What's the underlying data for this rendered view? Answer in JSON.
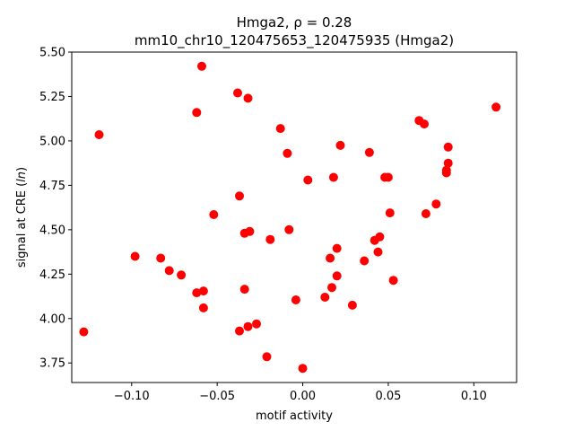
{
  "chart_data": {
    "type": "scatter",
    "title_line1_prefix": "Hmga2, ",
    "title_line1_rho": "ρ = 0.28",
    "title_line2": "mm10_chr10_120475653_120475935 (Hmga2)",
    "xlabel": "motif activity",
    "ylabel_prefix": "signal at CRE (",
    "ylabel_italic": "ln",
    "ylabel_suffix": ")",
    "xlim": [
      -0.135,
      0.125
    ],
    "ylim": [
      3.64,
      5.5
    ],
    "xticks": [
      -0.1,
      -0.05,
      0.0,
      0.05,
      0.1
    ],
    "xtick_labels": [
      "−0.10",
      "−0.05",
      "0.00",
      "0.05",
      "0.10"
    ],
    "yticks": [
      3.75,
      4.0,
      4.25,
      4.5,
      4.75,
      5.0,
      5.25,
      5.5
    ],
    "ytick_labels": [
      "3.75",
      "4.00",
      "4.25",
      "4.50",
      "4.75",
      "5.00",
      "5.25",
      "5.50"
    ],
    "marker_color": "#ff0000",
    "points": [
      {
        "x": -0.128,
        "y": 3.925
      },
      {
        "x": -0.119,
        "y": 5.035
      },
      {
        "x": -0.098,
        "y": 4.35
      },
      {
        "x": -0.083,
        "y": 4.34
      },
      {
        "x": -0.078,
        "y": 4.27
      },
      {
        "x": -0.071,
        "y": 4.245
      },
      {
        "x": -0.062,
        "y": 5.16
      },
      {
        "x": -0.062,
        "y": 4.145
      },
      {
        "x": -0.058,
        "y": 4.155
      },
      {
        "x": -0.058,
        "y": 4.06
      },
      {
        "x": -0.059,
        "y": 5.42
      },
      {
        "x": -0.052,
        "y": 4.585
      },
      {
        "x": -0.038,
        "y": 5.27
      },
      {
        "x": -0.037,
        "y": 4.69
      },
      {
        "x": -0.037,
        "y": 3.93
      },
      {
        "x": -0.034,
        "y": 4.48
      },
      {
        "x": -0.034,
        "y": 4.165
      },
      {
        "x": -0.032,
        "y": 5.24
      },
      {
        "x": -0.031,
        "y": 4.49
      },
      {
        "x": -0.032,
        "y": 3.955
      },
      {
        "x": -0.027,
        "y": 3.97
      },
      {
        "x": -0.021,
        "y": 3.785
      },
      {
        "x": -0.019,
        "y": 4.445
      },
      {
        "x": -0.013,
        "y": 5.07
      },
      {
        "x": -0.009,
        "y": 4.93
      },
      {
        "x": -0.008,
        "y": 4.5
      },
      {
        "x": -0.004,
        "y": 4.105
      },
      {
        "x": 0.0,
        "y": 3.72
      },
      {
        "x": 0.003,
        "y": 4.78
      },
      {
        "x": 0.013,
        "y": 4.12
      },
      {
        "x": 0.016,
        "y": 4.34
      },
      {
        "x": 0.017,
        "y": 4.175
      },
      {
        "x": 0.018,
        "y": 4.795
      },
      {
        "x": 0.02,
        "y": 4.395
      },
      {
        "x": 0.02,
        "y": 4.24
      },
      {
        "x": 0.022,
        "y": 4.975
      },
      {
        "x": 0.029,
        "y": 4.075
      },
      {
        "x": 0.036,
        "y": 4.325
      },
      {
        "x": 0.039,
        "y": 4.935
      },
      {
        "x": 0.042,
        "y": 4.44
      },
      {
        "x": 0.044,
        "y": 4.375
      },
      {
        "x": 0.045,
        "y": 4.46
      },
      {
        "x": 0.048,
        "y": 4.795
      },
      {
        "x": 0.05,
        "y": 4.795
      },
      {
        "x": 0.051,
        "y": 4.595
      },
      {
        "x": 0.053,
        "y": 4.215
      },
      {
        "x": 0.068,
        "y": 5.115
      },
      {
        "x": 0.071,
        "y": 5.095
      },
      {
        "x": 0.072,
        "y": 4.59
      },
      {
        "x": 0.078,
        "y": 4.645
      },
      {
        "x": 0.084,
        "y": 4.835
      },
      {
        "x": 0.084,
        "y": 4.82
      },
      {
        "x": 0.085,
        "y": 4.965
      },
      {
        "x": 0.085,
        "y": 4.875
      },
      {
        "x": 0.113,
        "y": 5.19
      }
    ]
  }
}
